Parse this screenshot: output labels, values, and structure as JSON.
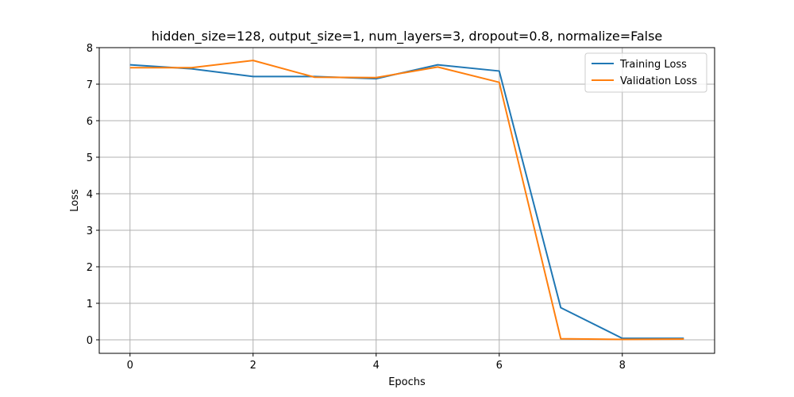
{
  "chart_data": {
    "type": "line",
    "title": "hidden_size=128, output_size=1, num_layers=3, dropout=0.8, normalize=False",
    "xlabel": "Epochs",
    "ylabel": "Loss",
    "xlim": [
      -0.5,
      9.5
    ],
    "ylim": [
      -0.37,
      8.0
    ],
    "xticks": [
      0,
      2,
      4,
      6,
      8
    ],
    "yticks": [
      0,
      1,
      2,
      3,
      4,
      5,
      6,
      7,
      8
    ],
    "grid": true,
    "legend_position": "top-right",
    "x": [
      0,
      1,
      2,
      3,
      4,
      5,
      6,
      7,
      8,
      9
    ],
    "series": [
      {
        "name": "Training Loss",
        "color": "#1f77b4",
        "values": [
          7.53,
          7.42,
          7.21,
          7.21,
          7.15,
          7.53,
          7.36,
          0.88,
          0.04,
          0.04
        ]
      },
      {
        "name": "Validation Loss",
        "color": "#ff7f0e",
        "values": [
          7.45,
          7.45,
          7.65,
          7.19,
          7.18,
          7.47,
          7.05,
          0.03,
          0.01,
          0.02
        ]
      }
    ]
  }
}
